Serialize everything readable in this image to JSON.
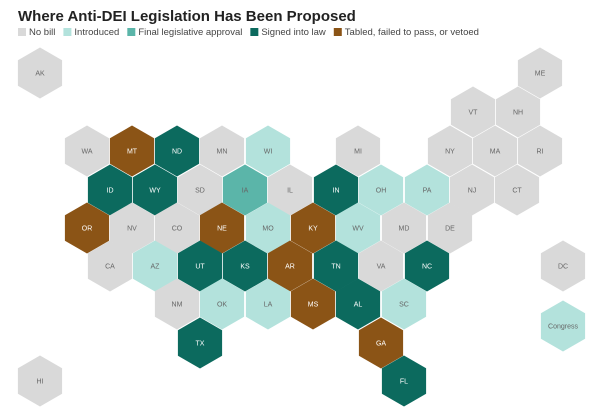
{
  "title": "Where Anti-DEI Legislation Has Been Proposed",
  "legend": [
    {
      "label": "No bill",
      "color": "#d9d9d9"
    },
    {
      "label": "Introduced",
      "color": "#b3e2dc"
    },
    {
      "label": "Final legislative approval",
      "color": "#5bb5a9"
    },
    {
      "label": "Signed into law",
      "color": "#0c6a5e"
    },
    {
      "label": "Tabled, failed to pass, or vetoed",
      "color": "#8b5416"
    }
  ],
  "states": [
    {
      "label": "AK",
      "status": "No bill"
    },
    {
      "label": "ME",
      "status": "No bill"
    },
    {
      "label": "VT",
      "status": "No bill"
    },
    {
      "label": "NH",
      "status": "No bill"
    },
    {
      "label": "WA",
      "status": "No bill"
    },
    {
      "label": "MT",
      "status": "Tabled, failed to pass, or vetoed"
    },
    {
      "label": "ND",
      "status": "Signed into law"
    },
    {
      "label": "MN",
      "status": "No bill"
    },
    {
      "label": "WI",
      "status": "Introduced"
    },
    {
      "label": "MI",
      "status": "No bill"
    },
    {
      "label": "NY",
      "status": "No bill"
    },
    {
      "label": "MA",
      "status": "No bill"
    },
    {
      "label": "RI",
      "status": "No bill"
    },
    {
      "label": "ID",
      "status": "Signed into law"
    },
    {
      "label": "WY",
      "status": "Signed into law"
    },
    {
      "label": "SD",
      "status": "No bill"
    },
    {
      "label": "IA",
      "status": "Final legislative approval"
    },
    {
      "label": "IL",
      "status": "No bill"
    },
    {
      "label": "IN",
      "status": "Signed into law"
    },
    {
      "label": "OH",
      "status": "Introduced"
    },
    {
      "label": "PA",
      "status": "Introduced"
    },
    {
      "label": "NJ",
      "status": "No bill"
    },
    {
      "label": "CT",
      "status": "No bill"
    },
    {
      "label": "OR",
      "status": "Tabled, failed to pass, or vetoed"
    },
    {
      "label": "NV",
      "status": "No bill"
    },
    {
      "label": "CO",
      "status": "No bill"
    },
    {
      "label": "NE",
      "status": "Tabled, failed to pass, or vetoed"
    },
    {
      "label": "MO",
      "status": "Introduced"
    },
    {
      "label": "KY",
      "status": "Tabled, failed to pass, or vetoed"
    },
    {
      "label": "WV",
      "status": "Introduced"
    },
    {
      "label": "MD",
      "status": "No bill"
    },
    {
      "label": "DE",
      "status": "No bill"
    },
    {
      "label": "CA",
      "status": "No bill"
    },
    {
      "label": "AZ",
      "status": "Introduced"
    },
    {
      "label": "UT",
      "status": "Signed into law"
    },
    {
      "label": "KS",
      "status": "Signed into law"
    },
    {
      "label": "AR",
      "status": "Tabled, failed to pass, or vetoed"
    },
    {
      "label": "TN",
      "status": "Signed into law"
    },
    {
      "label": "VA",
      "status": "No bill"
    },
    {
      "label": "NC",
      "status": "Signed into law"
    },
    {
      "label": "DC",
      "status": "No bill"
    },
    {
      "label": "NM",
      "status": "No bill"
    },
    {
      "label": "OK",
      "status": "Introduced"
    },
    {
      "label": "LA",
      "status": "Introduced"
    },
    {
      "label": "MS",
      "status": "Tabled, failed to pass, or vetoed"
    },
    {
      "label": "AL",
      "status": "Signed into law"
    },
    {
      "label": "SC",
      "status": "Introduced"
    },
    {
      "label": "Congress",
      "status": "Introduced"
    },
    {
      "label": "TX",
      "status": "Signed into law"
    },
    {
      "label": "GA",
      "status": "Tabled, failed to pass, or vetoed"
    },
    {
      "label": "HI",
      "status": "No bill"
    },
    {
      "label": "FL",
      "status": "Signed into law"
    }
  ]
}
